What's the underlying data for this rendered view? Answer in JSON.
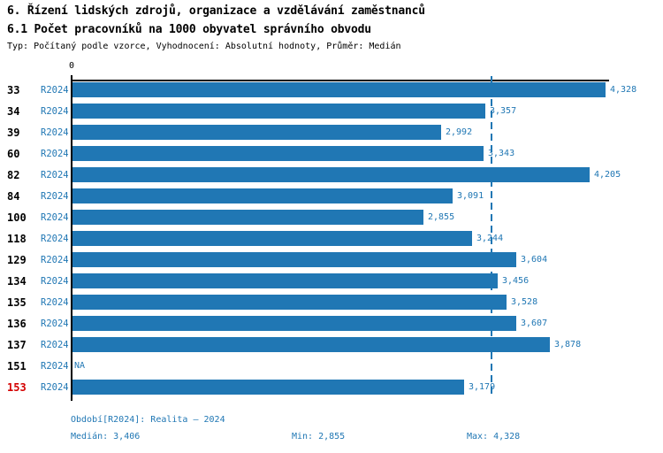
{
  "header": {
    "title1": "6. Řízení lidských zdrojů, organizace a vzdělávání zaměstnanců",
    "title2": "6.1 Počet pracovníků na 1000 obyvatel správního obvodu",
    "subtitle": "Typ: Počítaný podle vzorce, Vyhodnocení: Absolutní hodnoty, Průměr: Medián"
  },
  "chart_data": {
    "type": "bar",
    "orientation": "horizontal",
    "title": "6.1 Počet pracovníků na 1000 obyvatel správního obvodu",
    "series_label": "R2024",
    "categories": [
      "33",
      "34",
      "39",
      "60",
      "82",
      "84",
      "100",
      "118",
      "129",
      "134",
      "135",
      "136",
      "137",
      "151",
      "153"
    ],
    "values": [
      4328,
      3357,
      2992,
      3343,
      4205,
      3091,
      2855,
      3244,
      3604,
      3456,
      3528,
      3607,
      3878,
      null,
      3179
    ],
    "value_labels": [
      "4,328",
      "3,357",
      "2,992",
      "3,343",
      "4,205",
      "3,091",
      "2,855",
      "3,244",
      "3,604",
      "3,456",
      "3,528",
      "3,607",
      "3,878",
      "NA",
      "3,179"
    ],
    "highlighted_category": "153",
    "median": 3406,
    "min": 2855,
    "max": 4328,
    "xlim": [
      0,
      4360
    ],
    "x_tick_labels": [
      "0"
    ],
    "grid": false,
    "legend_position": "none",
    "bar_color": "#2077b4",
    "label_color": "#2077b4",
    "median_line_color": "#2077b4",
    "highlight_color": "#d40000"
  },
  "footer": {
    "period": "Období[R2024]: Realita – 2024",
    "median": "Medián: 3,406",
    "min": "Min: 2,855",
    "max": "Max: 4,328"
  }
}
